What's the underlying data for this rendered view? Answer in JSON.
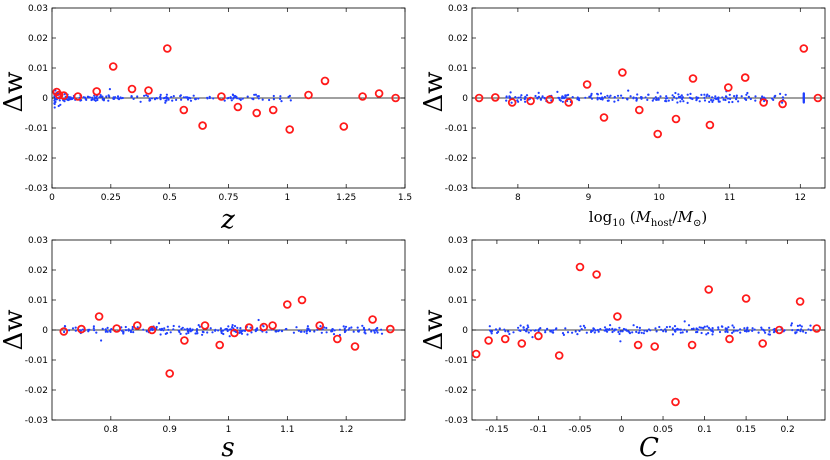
{
  "figure_colors": {
    "points": "#1f3fff",
    "outliers": "#ff1a1a",
    "axes": "#000000"
  },
  "chart_data": [
    {
      "id": "z",
      "type": "scatter",
      "title": "",
      "ylabel": "Δw",
      "xlabel": "z",
      "xlim": [
        0,
        1.5
      ],
      "ylim": [
        -0.03,
        0.03
      ],
      "xticks": [
        0,
        0.25,
        0.5,
        0.75,
        1,
        1.25,
        1.5
      ],
      "xtick_labels": [
        "0",
        "0.25",
        "0.5",
        "0.75",
        "1",
        "1.25",
        "1.5"
      ],
      "yticks": [
        -0.03,
        -0.02,
        -0.01,
        0,
        0.01,
        0.02,
        0.03
      ],
      "ytick_labels": [
        "-0.03",
        "-0.02",
        "-0.01",
        "0",
        "0.01",
        "0.02",
        "0.03"
      ],
      "blue_scatter": {
        "x_range": [
          0.01,
          1.05
        ],
        "spread": 0.0012,
        "count": 190,
        "dense_low": true
      },
      "red_points": [
        [
          0.02,
          0.002
        ],
        [
          0.03,
          0.001
        ],
        [
          0.05,
          0.0008
        ],
        [
          0.11,
          0.0005
        ],
        [
          0.19,
          0.0022
        ],
        [
          0.26,
          0.0105
        ],
        [
          0.34,
          0.003
        ],
        [
          0.41,
          0.0025
        ],
        [
          0.49,
          0.0165
        ],
        [
          0.56,
          -0.004
        ],
        [
          0.64,
          -0.0092
        ],
        [
          0.72,
          0.0005
        ],
        [
          0.79,
          -0.003
        ],
        [
          0.87,
          -0.005
        ],
        [
          0.94,
          -0.004
        ],
        [
          1.01,
          -0.0105
        ],
        [
          1.09,
          0.001
        ],
        [
          1.16,
          0.0057
        ],
        [
          1.24,
          -0.0095
        ],
        [
          1.32,
          0.0005
        ],
        [
          1.39,
          0.0015
        ],
        [
          1.46,
          0.0
        ]
      ]
    },
    {
      "id": "mhost",
      "type": "scatter",
      "title": "",
      "ylabel": "Δw",
      "xlabel": "log10 (Mhost/M⊙)",
      "xlabel_parts": {
        "log": "log",
        "sub10": "10",
        "M": "M",
        "host": "host",
        "slash": "/",
        "Msun": "M",
        "sun": "⊙"
      },
      "xlim": [
        7.35,
        12.35
      ],
      "ylim": [
        -0.03,
        0.03
      ],
      "xticks": [
        8,
        9,
        10,
        11,
        12
      ],
      "xtick_labels": [
        "8",
        "9",
        "10",
        "11",
        "12"
      ],
      "yticks": [
        -0.03,
        -0.02,
        -0.01,
        0,
        0.01,
        0.02,
        0.03
      ],
      "ytick_labels": [
        "-0.03",
        "-0.02",
        "-0.01",
        "0",
        "0.01",
        "0.02",
        "0.03"
      ],
      "blue_scatter": {
        "x_range": [
          7.8,
          11.8
        ],
        "spread": 0.0015,
        "count": 220,
        "dense_low": false
      },
      "red_points": [
        [
          7.45,
          0.0
        ],
        [
          7.68,
          0.0002
        ],
        [
          7.92,
          -0.0015
        ],
        [
          8.18,
          -0.001
        ],
        [
          8.45,
          -0.0005
        ],
        [
          8.72,
          -0.0015
        ],
        [
          8.98,
          0.0045
        ],
        [
          9.22,
          -0.0065
        ],
        [
          9.48,
          0.0085
        ],
        [
          9.72,
          -0.004
        ],
        [
          9.98,
          -0.012
        ],
        [
          10.24,
          -0.007
        ],
        [
          10.48,
          0.0065
        ],
        [
          10.72,
          -0.009
        ],
        [
          10.98,
          0.0035
        ],
        [
          11.22,
          0.0068
        ],
        [
          11.48,
          -0.0015
        ],
        [
          11.75,
          -0.002
        ],
        [
          12.05,
          0.0165
        ],
        [
          12.25,
          0.0
        ]
      ]
    },
    {
      "id": "s",
      "type": "scatter",
      "title": "",
      "ylabel": "Δw",
      "xlabel": "s",
      "xlim": [
        0.7,
        1.3
      ],
      "ylim": [
        -0.03,
        0.03
      ],
      "xticks": [
        0.8,
        0.9,
        1,
        1.1,
        1.2
      ],
      "xtick_labels": [
        "0.8",
        "0.9",
        "1",
        "1.1",
        "1.2"
      ],
      "yticks": [
        -0.03,
        -0.02,
        -0.01,
        0,
        0.01,
        0.02,
        0.03
      ],
      "ytick_labels": [
        "-0.03",
        "-0.02",
        "-0.01",
        "0",
        "0.01",
        "0.02",
        "0.03"
      ],
      "blue_scatter": {
        "x_range": [
          0.72,
          1.27
        ],
        "spread": 0.0013,
        "count": 230,
        "dense_low": false
      },
      "red_points": [
        [
          0.72,
          -0.0005
        ],
        [
          0.75,
          0.0003
        ],
        [
          0.78,
          0.0045
        ],
        [
          0.81,
          0.0005
        ],
        [
          0.845,
          0.0015
        ],
        [
          0.87,
          0.0
        ],
        [
          0.9,
          -0.0145
        ],
        [
          0.925,
          -0.0035
        ],
        [
          0.96,
          0.0015
        ],
        [
          0.985,
          -0.005
        ],
        [
          1.01,
          -0.001
        ],
        [
          1.035,
          0.0008
        ],
        [
          1.06,
          0.001
        ],
        [
          1.075,
          0.0015
        ],
        [
          1.1,
          0.0085
        ],
        [
          1.125,
          0.01
        ],
        [
          1.155,
          0.0015
        ],
        [
          1.185,
          -0.003
        ],
        [
          1.215,
          -0.0055
        ],
        [
          1.245,
          0.0035
        ],
        [
          1.275,
          0.0003
        ]
      ]
    },
    {
      "id": "c",
      "type": "scatter",
      "title": "",
      "ylabel": "Δw",
      "xlabel": "C",
      "xlim": [
        -0.18,
        0.245
      ],
      "ylim": [
        -0.03,
        0.03
      ],
      "xticks": [
        -0.15,
        -0.1,
        -0.05,
        0,
        0.05,
        0.1,
        0.15,
        0.2
      ],
      "xtick_labels": [
        "-0.15",
        "-0.1",
        "-0.05",
        "0",
        "0.05",
        "0.1",
        "0.15",
        "0.2"
      ],
      "yticks": [
        -0.03,
        -0.02,
        -0.01,
        0,
        0.01,
        0.02,
        0.03
      ],
      "ytick_labels": [
        "-0.03",
        "-0.02",
        "-0.01",
        "0",
        "0.01",
        "0.02",
        "0.03"
      ],
      "blue_scatter": {
        "x_range": [
          -0.16,
          0.23
        ],
        "spread": 0.0014,
        "count": 230,
        "dense_low": false
      },
      "red_points": [
        [
          -0.175,
          -0.008
        ],
        [
          -0.16,
          -0.0035
        ],
        [
          -0.14,
          -0.003
        ],
        [
          -0.12,
          -0.0045
        ],
        [
          -0.1,
          -0.002
        ],
        [
          -0.075,
          -0.0085
        ],
        [
          -0.05,
          0.021
        ],
        [
          -0.03,
          0.0185
        ],
        [
          -0.005,
          0.0045
        ],
        [
          0.02,
          -0.005
        ],
        [
          0.04,
          -0.0055
        ],
        [
          0.065,
          -0.024
        ],
        [
          0.085,
          -0.005
        ],
        [
          0.105,
          0.0135
        ],
        [
          0.13,
          -0.003
        ],
        [
          0.15,
          0.0105
        ],
        [
          0.17,
          -0.0045
        ],
        [
          0.19,
          0.0
        ],
        [
          0.215,
          0.0095
        ],
        [
          0.235,
          0.0005
        ]
      ]
    }
  ]
}
